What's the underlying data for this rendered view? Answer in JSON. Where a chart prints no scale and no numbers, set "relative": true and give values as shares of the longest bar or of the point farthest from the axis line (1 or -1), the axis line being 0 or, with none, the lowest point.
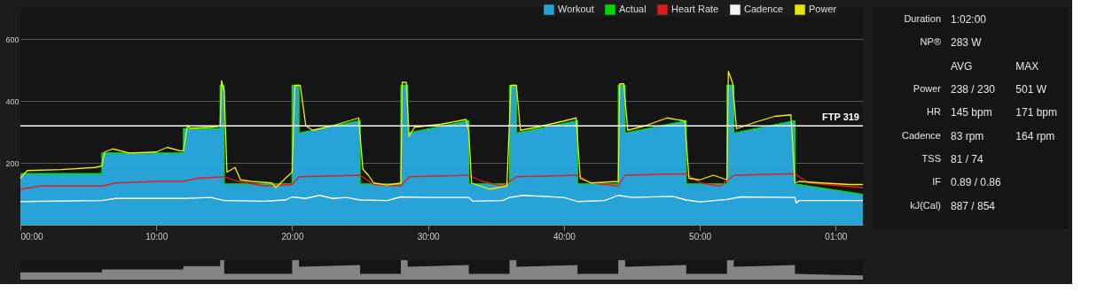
{
  "chart_data": [
    {
      "type": "line",
      "xlim": [
        0,
        62
      ],
      "ylim": [
        0,
        700
      ],
      "xticks": [
        {
          "value": 0,
          "label": "00:00"
        },
        {
          "value": 10,
          "label": "10:00"
        },
        {
          "value": 20,
          "label": "20:00"
        },
        {
          "value": 30,
          "label": "30:00"
        },
        {
          "value": 40,
          "label": "40:00"
        },
        {
          "value": 50,
          "label": "50:00"
        },
        {
          "value": 60,
          "label": "01:00"
        }
      ],
      "yticks": [
        {
          "value": 0,
          "label": null
        },
        200,
        400,
        600
      ],
      "grid": "y",
      "legend": "top right",
      "ref_lines": [
        {
          "axis": "y",
          "value": 319,
          "label": "FTP 319",
          "color": "#ffffff"
        }
      ],
      "series": [
        {
          "name": "Workout",
          "type": "area",
          "color": "#29abe2",
          "x": [
            0,
            6,
            6,
            12,
            12,
            14.7,
            14.7,
            15,
            15,
            20,
            20,
            20.5,
            20.5,
            25,
            25,
            28,
            28,
            28.5,
            28.5,
            33,
            33,
            36,
            36,
            36.5,
            36.5,
            41,
            41,
            44,
            44,
            44.5,
            44.5,
            49,
            49,
            52,
            52,
            52.5,
            52.5,
            57,
            57,
            62
          ],
          "values": [
            165,
            165,
            232,
            232,
            310,
            310,
            450,
            450,
            132,
            132,
            450,
            450,
            296,
            336,
            132,
            132,
            450,
            450,
            296,
            336,
            132,
            132,
            450,
            450,
            296,
            336,
            132,
            132,
            450,
            450,
            296,
            336,
            132,
            132,
            450,
            450,
            296,
            336,
            132,
            98
          ]
        },
        {
          "name": "Actual",
          "type": "line",
          "color": "#00e000",
          "x": [
            0,
            6,
            6,
            12,
            12,
            14.7,
            14.7,
            15,
            15,
            20,
            20,
            20.5,
            20.5,
            25,
            25,
            28,
            28,
            28.5,
            28.5,
            33,
            33,
            36,
            36,
            36.5,
            36.5,
            41,
            41,
            44,
            44,
            44.5,
            44.5,
            49,
            49,
            52,
            52,
            52.5,
            52.5,
            57,
            57,
            62
          ],
          "values": [
            165,
            165,
            232,
            232,
            310,
            310,
            450,
            450,
            132,
            132,
            450,
            450,
            296,
            336,
            132,
            132,
            450,
            450,
            296,
            336,
            132,
            132,
            450,
            450,
            296,
            336,
            132,
            132,
            450,
            450,
            296,
            336,
            132,
            132,
            450,
            450,
            296,
            336,
            132,
            98
          ]
        },
        {
          "name": "Heart Rate",
          "type": "line",
          "color": "#e81c1c",
          "x": [
            0,
            1.5,
            5,
            6,
            7,
            10,
            12,
            13,
            15,
            16,
            18,
            20,
            20.5,
            25,
            26,
            28,
            28.6,
            33,
            34,
            35.5,
            36.5,
            41,
            42,
            44,
            44.5,
            49,
            50,
            51.5,
            52.5,
            57,
            58,
            62
          ],
          "values": [
            115,
            125,
            125,
            125,
            135,
            140,
            140,
            150,
            155,
            140,
            125,
            130,
            155,
            160,
            130,
            125,
            155,
            160,
            140,
            125,
            155,
            160,
            135,
            125,
            160,
            165,
            135,
            125,
            160,
            165,
            135,
            120
          ]
        },
        {
          "name": "Cadence",
          "type": "line",
          "color": "#ffffff",
          "x": [
            0,
            6,
            7,
            12,
            14,
            15,
            18,
            19.5,
            20,
            21,
            22,
            23,
            24,
            25,
            27,
            28,
            30,
            33,
            33.3,
            35.5,
            36,
            37,
            40,
            41,
            43,
            44,
            45,
            48,
            49,
            50,
            52,
            53,
            57,
            57.1,
            57.3,
            62
          ],
          "values": [
            75,
            78,
            85,
            85,
            88,
            78,
            76,
            80,
            90,
            85,
            95,
            85,
            88,
            80,
            78,
            90,
            88,
            88,
            76,
            78,
            88,
            95,
            88,
            75,
            78,
            95,
            88,
            92,
            80,
            74,
            82,
            90,
            88,
            70,
            78,
            78
          ]
        },
        {
          "name": "Power",
          "type": "line",
          "color": "#f0f000",
          "x": [
            0,
            0.5,
            3,
            5.5,
            6,
            6.2,
            6.8,
            8,
            10,
            10.8,
            11.8,
            12,
            12.3,
            12.5,
            14,
            14.7,
            14.8,
            15,
            15.2,
            15.8,
            16.2,
            17,
            18.5,
            18.8,
            19.5,
            20,
            20.2,
            20.6,
            21,
            21.5,
            23,
            24.9,
            25.2,
            25.6,
            26,
            27,
            28,
            28.1,
            28.4,
            28.6,
            29,
            31,
            32.8,
            33,
            33.2,
            34.5,
            35.8,
            36.1,
            36.5,
            36.8,
            38,
            40,
            40.9,
            41.2,
            42,
            44,
            44.1,
            44.4,
            44.7,
            46,
            47.6,
            48.9,
            49.2,
            50,
            51,
            52,
            52.1,
            52.4,
            52.7,
            54,
            55.5,
            56.7,
            57,
            57.3,
            59,
            61,
            62
          ],
          "values": [
            150,
            175,
            178,
            185,
            190,
            235,
            245,
            232,
            235,
            250,
            238,
            240,
            320,
            312,
            315,
            318,
            465,
            430,
            170,
            185,
            145,
            140,
            135,
            120,
            150,
            170,
            450,
            450,
            320,
            305,
            320,
            345,
            180,
            160,
            135,
            128,
            135,
            460,
            460,
            285,
            315,
            325,
            340,
            300,
            135,
            115,
            125,
            450,
            450,
            305,
            315,
            335,
            345,
            150,
            135,
            140,
            455,
            455,
            305,
            320,
            345,
            335,
            150,
            145,
            160,
            145,
            495,
            460,
            310,
            330,
            350,
            355,
            135,
            140,
            135,
            130,
            130
          ]
        }
      ]
    },
    {
      "type": "area",
      "relative": true,
      "xlim": [
        0,
        62
      ],
      "series": [
        {
          "color": "#8a8a8a",
          "x": [
            0,
            6,
            6,
            12,
            12,
            14.7,
            14.7,
            15,
            15,
            20,
            20,
            20.5,
            20.5,
            25,
            25,
            28,
            28,
            28.5,
            28.5,
            33,
            33,
            36,
            36,
            36.5,
            36.5,
            41,
            41,
            44,
            44,
            44.5,
            44.5,
            49,
            49,
            52,
            52,
            52.5,
            52.5,
            57,
            57,
            62
          ],
          "values": [
            0.37,
            0.37,
            0.52,
            0.52,
            0.69,
            0.69,
            1,
            1,
            0.29,
            0.29,
            1,
            1,
            0.66,
            0.75,
            0.29,
            0.29,
            1,
            1,
            0.66,
            0.75,
            0.29,
            0.29,
            1,
            1,
            0.66,
            0.75,
            0.29,
            0.29,
            1,
            1,
            0.66,
            0.75,
            0.29,
            0.29,
            1,
            1,
            0.66,
            0.75,
            0.29,
            0.22
          ]
        }
      ]
    },
    {
      "type": "other",
      "annotations": [
        "Duration",
        "1:02:00",
        "NP®",
        "283 W",
        "AVG",
        "MAX",
        "Power",
        "238 / 230",
        "501 W",
        "HR",
        "145 bpm",
        "171 bpm",
        "Cadence",
        "83 rpm",
        "164 rpm",
        "TSS",
        "81 / 74",
        "IF",
        "0.89 / 0.86",
        "kJ(Cal)",
        "887 / 854"
      ]
    }
  ]
}
